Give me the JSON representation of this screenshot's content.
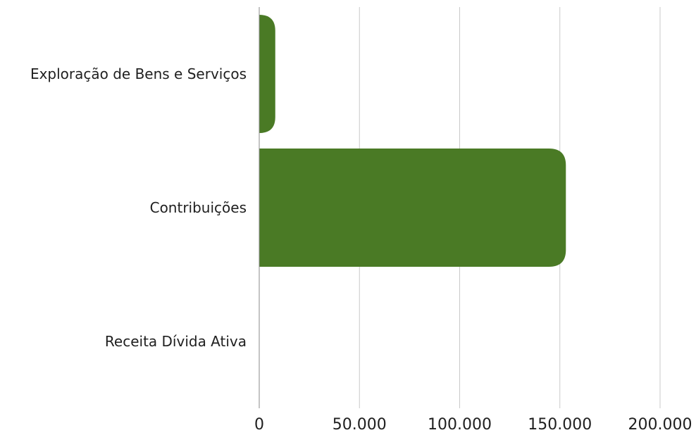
{
  "chart_data": {
    "type": "bar",
    "orientation": "horizontal",
    "categories": [
      "Exploração de Bens e Serviços",
      "Contribuições",
      "Receita Dívida Ativa"
    ],
    "values": [
      8000,
      153000,
      0
    ],
    "xlim": [
      0,
      200000
    ],
    "x_ticks": [
      0,
      50000,
      100000,
      150000,
      200000
    ],
    "x_tick_labels": [
      "0",
      "50.000",
      "100.000",
      "150.000",
      "200.000"
    ],
    "grid": true,
    "legend": "none",
    "bar_color": "#4a7a25"
  }
}
